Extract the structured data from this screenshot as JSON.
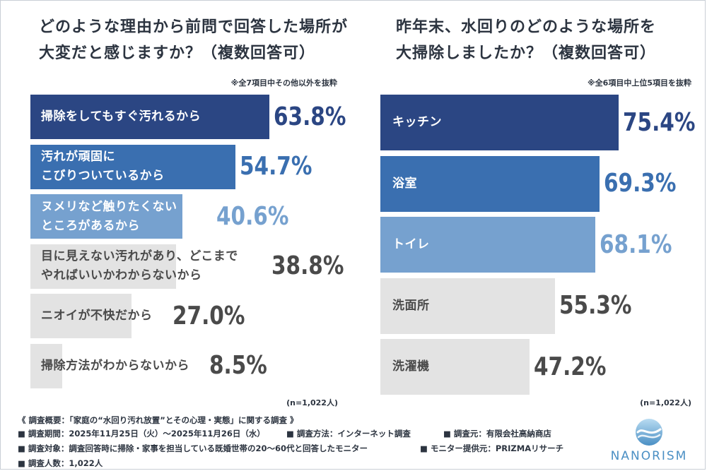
{
  "colors": {
    "dark": "#2b4683",
    "mid": "#3a6fb0",
    "light": "#76a1cf",
    "grey": "#e3e3e3",
    "textDark": "#4a4a4a",
    "textLight": "#ffffff",
    "logo": "#4a8fc4"
  },
  "chart_data": [
    {
      "type": "bar",
      "orientation": "horizontal",
      "title": "どのような理由から前問で回答した場所が\n大変だと感じますか？（複数回答可）",
      "note": "※全7項目中その他以外を抜粋",
      "n_label": "(n=1,022人)",
      "categories": [
        "掃除をしてもすぐ汚れるから",
        "汚れが頑固に\nこびりついているから",
        "ヌメリなど触りたくない\nところがあるから",
        "目に見えない汚れがあり、どこまで\nやればいいかわからないから",
        "ニオイが不快だから",
        "掃除方法がわからないから"
      ],
      "values": [
        63.8,
        54.7,
        40.6,
        38.8,
        27.0,
        8.5
      ],
      "value_labels": [
        "63.8%",
        "54.7%",
        "40.6%",
        "38.8%",
        "27.0%",
        "8.5%"
      ],
      "styles": [
        "dark",
        "mid",
        "light",
        "grey",
        "grey",
        "grey"
      ],
      "xlim": [
        0,
        100
      ]
    },
    {
      "type": "bar",
      "orientation": "horizontal",
      "title": "昨年末、水回りのどのような場所を\n大掃除しましたか？（複数回答可）",
      "note": "※全6項目中上位5項目を抜粋",
      "n_label": "(n=1,022人)",
      "categories": [
        "キッチン",
        "浴室",
        "トイレ",
        "洗面所",
        "洗濯機"
      ],
      "values": [
        75.4,
        69.3,
        68.1,
        55.3,
        47.2
      ],
      "value_labels": [
        "75.4%",
        "69.3%",
        "68.1%",
        "55.3%",
        "47.2%"
      ],
      "styles": [
        "dark",
        "mid",
        "light",
        "grey",
        "grey"
      ],
      "xlim": [
        0,
        100
      ]
    }
  ],
  "footer": {
    "line1": "《 調査概要：「家庭の“水回り汚れ放置”とその心理・実態」に関する調査 》",
    "period": "■ 調査期間：2025年11月25日（火）～2025年11月26日（水）",
    "method": "■ 調査方法：インターネット調査",
    "source": "■ 調査元：有限会社高納商店",
    "target": "■ 調査対象：調査回答時に掃除・家事を担当している既婚世帯の20～60代と回答したモニター",
    "provider": "■ モニター提供元：PRIZMAリサーチ",
    "count": "■ 調査人数：1,022人"
  },
  "logo": {
    "text": "NANORISM",
    "icon": "water-drop-icon"
  }
}
